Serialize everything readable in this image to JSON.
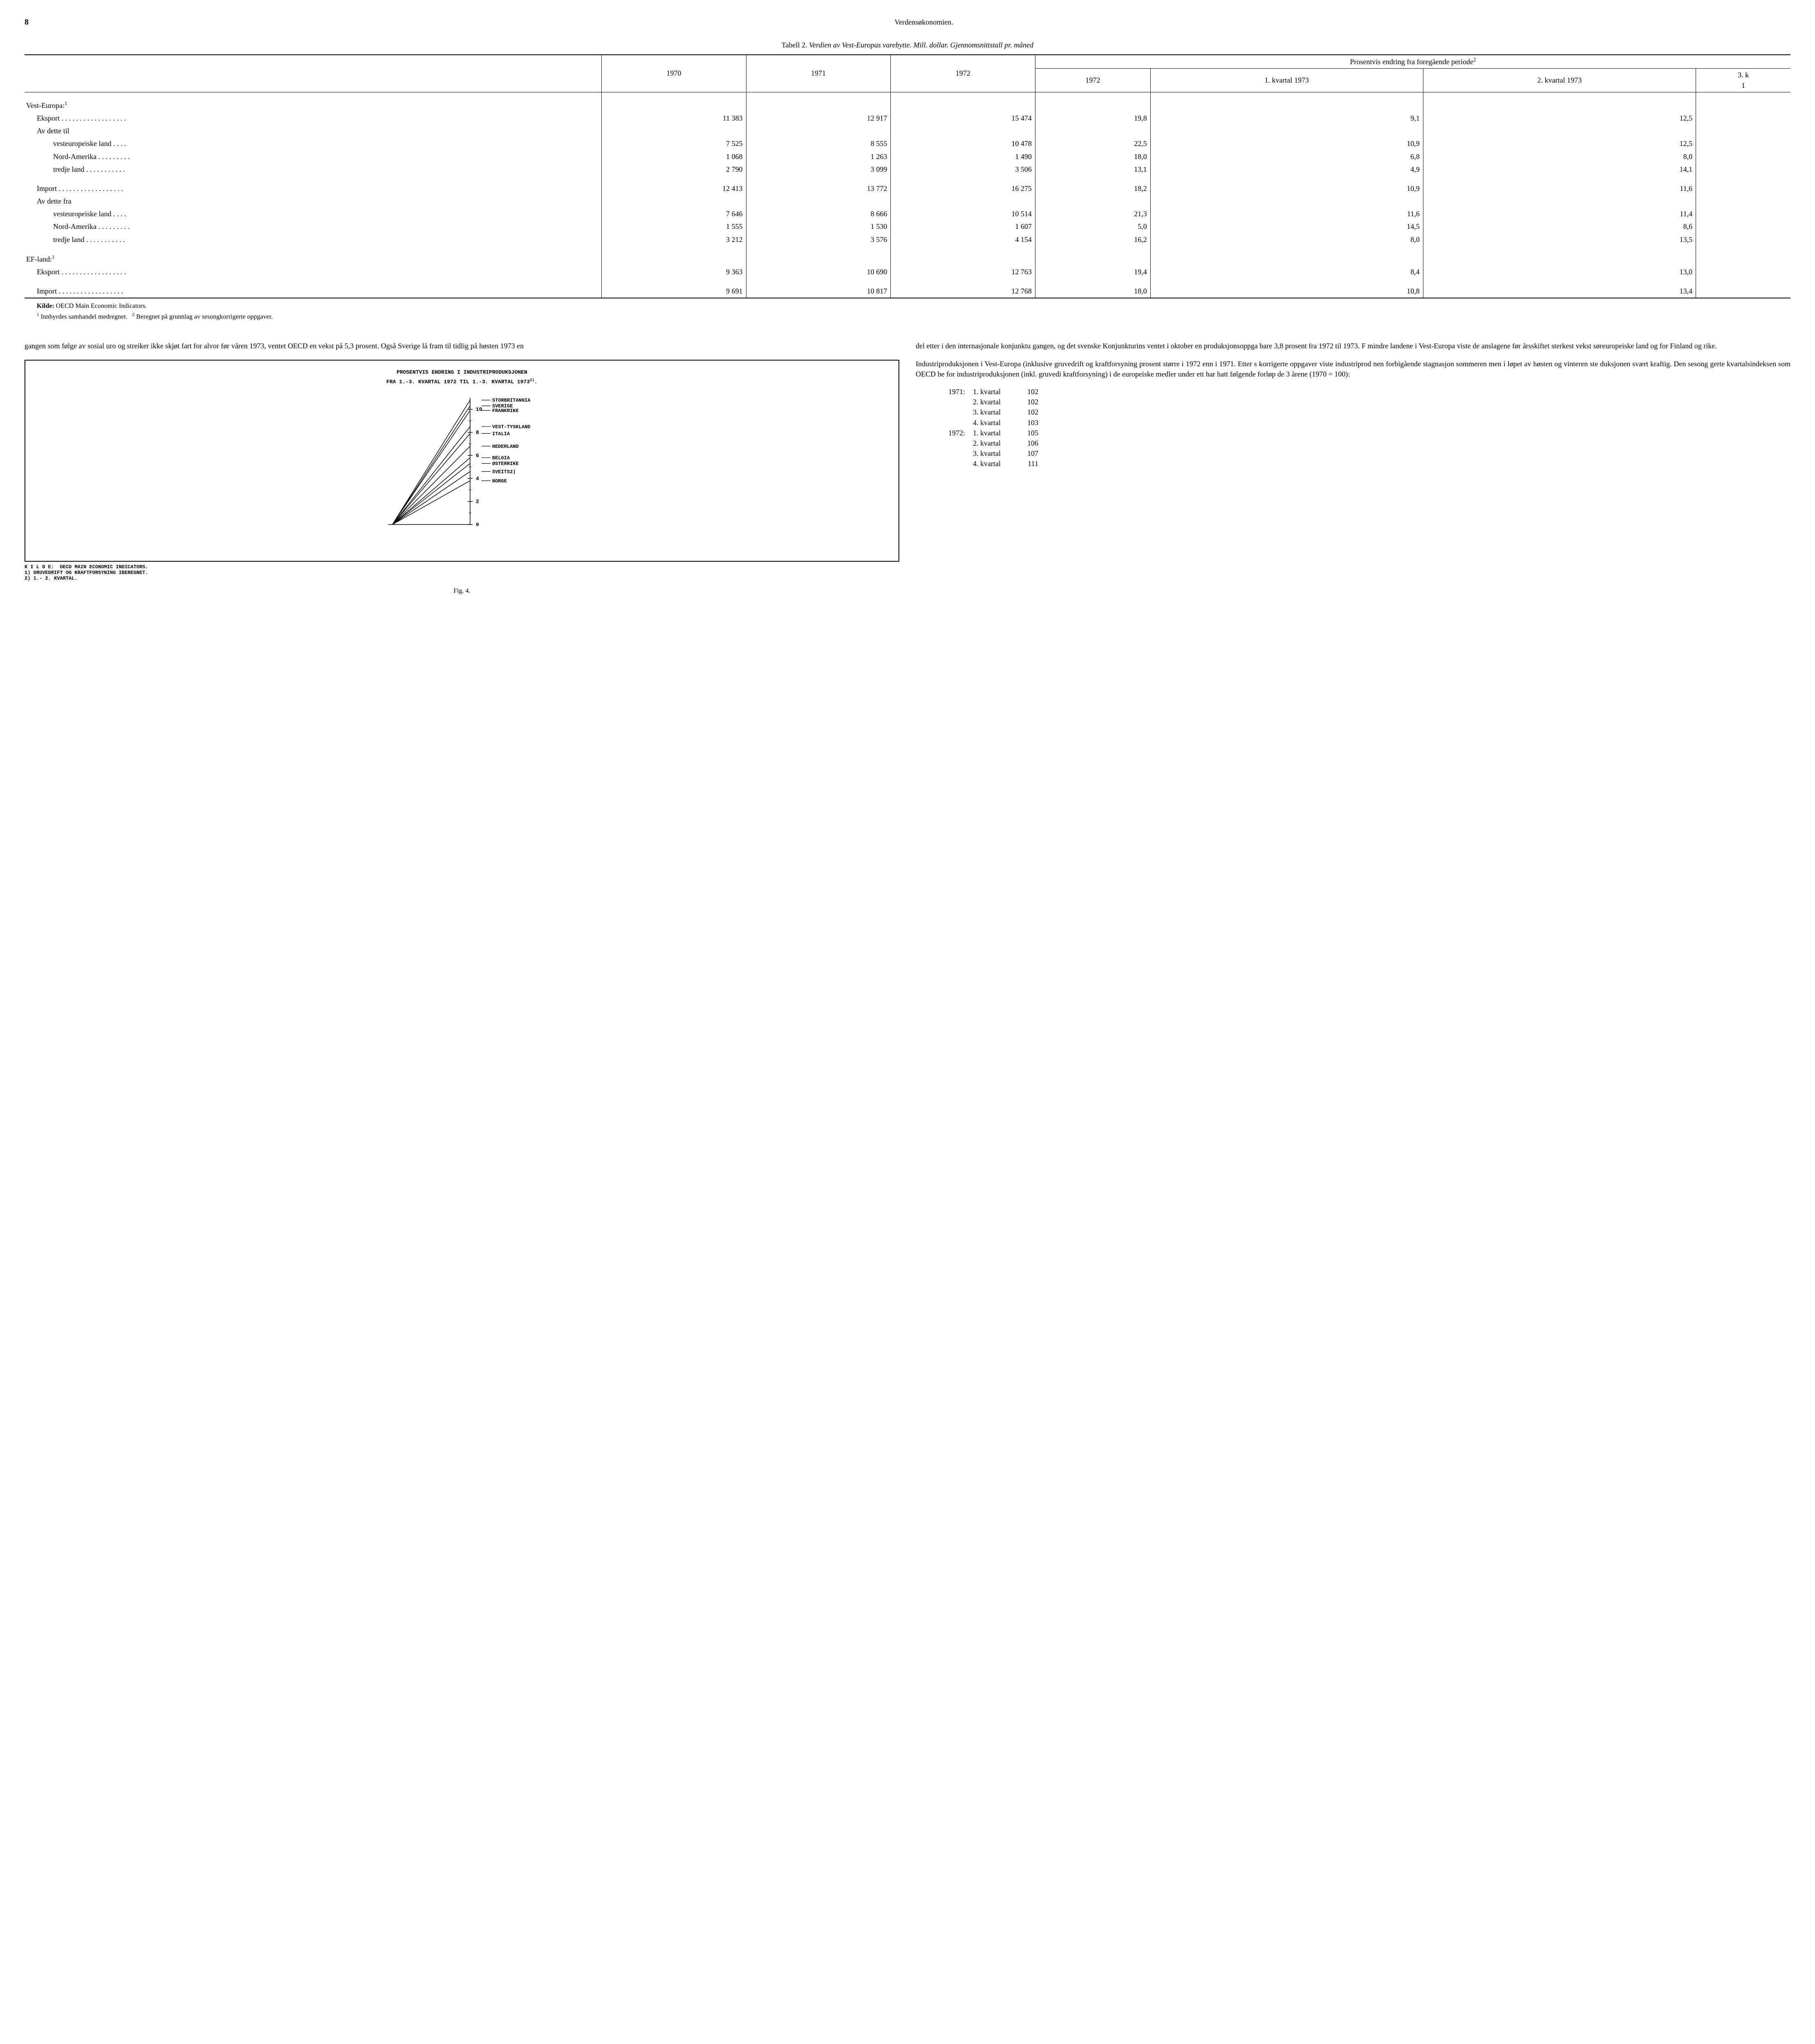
{
  "page_number": "8",
  "section_title": "Verdensøkonomien.",
  "table": {
    "caption_label": "Tabell 2.",
    "caption_title": "Verdien av Vest-Europas varebytte. Mill. dollar. Gjennomsnittstall pr. måned",
    "header": {
      "y1970": "1970",
      "y1971": "1971",
      "y1972": "1972",
      "pct_group": "Prosentvis endring fra foregående periode",
      "pct_group_sup": "2",
      "c1972": "1972",
      "q1_1973": "1. kvartal 1973",
      "q2_1973": "2. kvartal 1973",
      "q3": "3. k",
      "q3b": "1"
    },
    "rows": [
      {
        "label": "Vest-Europa:",
        "sup": "1",
        "label_class": "",
        "v": [
          "",
          "",
          "",
          "",
          "",
          "",
          ""
        ]
      },
      {
        "label": "Eksport . . . . . . . . . . . . . . . . . .",
        "label_class": "indent1",
        "v": [
          "11 383",
          "12 917",
          "15 474",
          "19,8",
          "9,1",
          "12,5",
          ""
        ]
      },
      {
        "label": "Av dette til",
        "label_class": "indent1",
        "v": [
          "",
          "",
          "",
          "",
          "",
          "",
          ""
        ]
      },
      {
        "label": "vesteuropeiske land . . . .",
        "label_class": "indent2",
        "v": [
          "7 525",
          "8 555",
          "10 478",
          "22,5",
          "10,9",
          "12,5",
          ""
        ]
      },
      {
        "label": "Nord-Amerika . . . . . . . . .",
        "label_class": "indent2",
        "v": [
          "1 068",
          "1 263",
          "1 490",
          "18,0",
          "6,8",
          "8,0",
          ""
        ]
      },
      {
        "label": "tredje land . . . . . . . . . . .",
        "label_class": "indent2",
        "v": [
          "2 790",
          "3 099",
          "3 506",
          "13,1",
          "4,9",
          "14,1",
          ""
        ]
      },
      {
        "spacer": true
      },
      {
        "label": "Import . . . . . . . . . . . . . . . . . .",
        "label_class": "indent1",
        "v": [
          "12 413",
          "13 772",
          "16 275",
          "18,2",
          "10,9",
          "11,6",
          ""
        ]
      },
      {
        "label": "Av dette fra",
        "label_class": "indent1",
        "v": [
          "",
          "",
          "",
          "",
          "",
          "",
          ""
        ]
      },
      {
        "label": "vesteuropeiske land . . . .",
        "label_class": "indent2",
        "v": [
          "7 646",
          "8 666",
          "10 514",
          "21,3",
          "11,6",
          "11,4",
          ""
        ]
      },
      {
        "label": "Nord-Amerika . . . . . . . . .",
        "label_class": "indent2",
        "v": [
          "1 555",
          "1 530",
          "1 607",
          "5,0",
          "14,5",
          "8,6",
          ""
        ]
      },
      {
        "label": "tredje land . . . . . . . . . . .",
        "label_class": "indent2",
        "v": [
          "3 212",
          "3 576",
          "4 154",
          "16,2",
          "8,0",
          "13,5",
          ""
        ]
      },
      {
        "spacer": true
      },
      {
        "label": "EF-land:",
        "sup": "1",
        "label_class": "",
        "v": [
          "",
          "",
          "",
          "",
          "",
          "",
          ""
        ]
      },
      {
        "label": "Eksport . . . . . . . . . . . . . . . . . .",
        "label_class": "indent1",
        "v": [
          "9 363",
          "10 690",
          "12 763",
          "19,4",
          "8,4",
          "13,0",
          ""
        ]
      },
      {
        "spacer": true
      },
      {
        "label": "Import . . . . . . . . . . . . . . . . . .",
        "label_class": "indent1",
        "v": [
          "9 691",
          "10 817",
          "12 768",
          "18,0",
          "10,8",
          "13,4",
          ""
        ]
      }
    ],
    "source_label": "Kilde:",
    "source_text": "OECD Main Economic Indicators.",
    "footnote1_sup": "1",
    "footnote1": "Innbyrdes samhandel medregnet.",
    "footnote2_sup": "2",
    "footnote2": "Beregnet på grunnlag av sesongkorrigerte oppgaver."
  },
  "body": {
    "left_p1": "gangen som følge av sosial uro og streiker ikke skjøt fart for alvor før våren 1973, ventet OECD en vekst på 5,3 prosent. Også Sverige lå fram til tidlig på høsten 1973 en",
    "right_p1": "del etter i den internasjonale konjunktu gangen, og det svenske Konjunkturins ventet i oktober en produksjonsoppga bare 3,8 prosent fra 1972 til 1973. F mindre landene i Vest-Europa viste de anslagene før årsskiftet sterkest vekst søreuropeiske land og for Finland og rike.",
    "right_p2": "Industriproduksjonen i Vest-Europa (inklusive gruvedrift og kraftforsyning prosent større i 1972 enn i 1971. Etter s korrigerte oppgaver viste industriprod nen forbigående stagnasjon sommeren men i løpet av høsten og vinteren ste duksjonen svært kraftig. Den sesong gerte kvartalsindeksen som OECD be for industriproduksjonen (inkl. gruvedi kraftforsyning) i de europeiske medler under ett har hatt følgende forløp de 3 årene (1970 = 100):"
  },
  "chart": {
    "title1": "PROSENTVIS ENDRING I INDUSTRIPRODUKSJONEN",
    "title2": "FRA 1.-3. KVARTAL 1972 TIL 1.-3. KVARTAL 1973",
    "title2_sup": "1)",
    "y_ticks": [
      "10",
      "8",
      "6",
      "4",
      "2",
      "0"
    ],
    "series": [
      {
        "name": "STORBRITANNIA",
        "value": 10.8
      },
      {
        "name": "SVERIGE",
        "value": 10.3
      },
      {
        "name": "FRANKRIKE",
        "value": 9.9
      },
      {
        "name": "VEST-TYSKLAND",
        "value": 8.5
      },
      {
        "name": "ITALIA",
        "value": 7.9
      },
      {
        "name": "NEDERLAND",
        "value": 6.8
      },
      {
        "name": "BELGIA",
        "value": 5.8
      },
      {
        "name": "ØSTERRIKE",
        "value": 5.3
      },
      {
        "name": "SVEITS",
        "value": 4.6,
        "sup": "2)"
      },
      {
        "name": "NORGE",
        "value": 3.8
      }
    ],
    "line_color": "#000000",
    "axis_color": "#000000",
    "bg_color": "#ffffff",
    "y_min": 0,
    "y_max": 11,
    "note_label": "K I L D E:",
    "note_text": "OECD MAIN ECONOMIC INDICATORS.",
    "note1": "1)  GRUVEDRIFT OG KRAFTFORSYNING IBEREGNET.",
    "note2": "2)  1.- 2. KVARTAL.",
    "fig_caption": "Fig. 4."
  },
  "quarters": {
    "rows": [
      {
        "yr": "1971:",
        "q": "1. kvartal",
        "v": "102"
      },
      {
        "yr": "",
        "q": "2. kvartal",
        "v": "102"
      },
      {
        "yr": "",
        "q": "3. kvartal",
        "v": "102"
      },
      {
        "yr": "",
        "q": "4. kvartal",
        "v": "103"
      },
      {
        "yr": "1972:",
        "q": "1. kvartal",
        "v": "105"
      },
      {
        "yr": "",
        "q": "2. kvartal",
        "v": "106"
      },
      {
        "yr": "",
        "q": "3. kvartal",
        "v": "107"
      },
      {
        "yr": "",
        "q": "4. kvartal",
        "v": "111"
      }
    ]
  }
}
